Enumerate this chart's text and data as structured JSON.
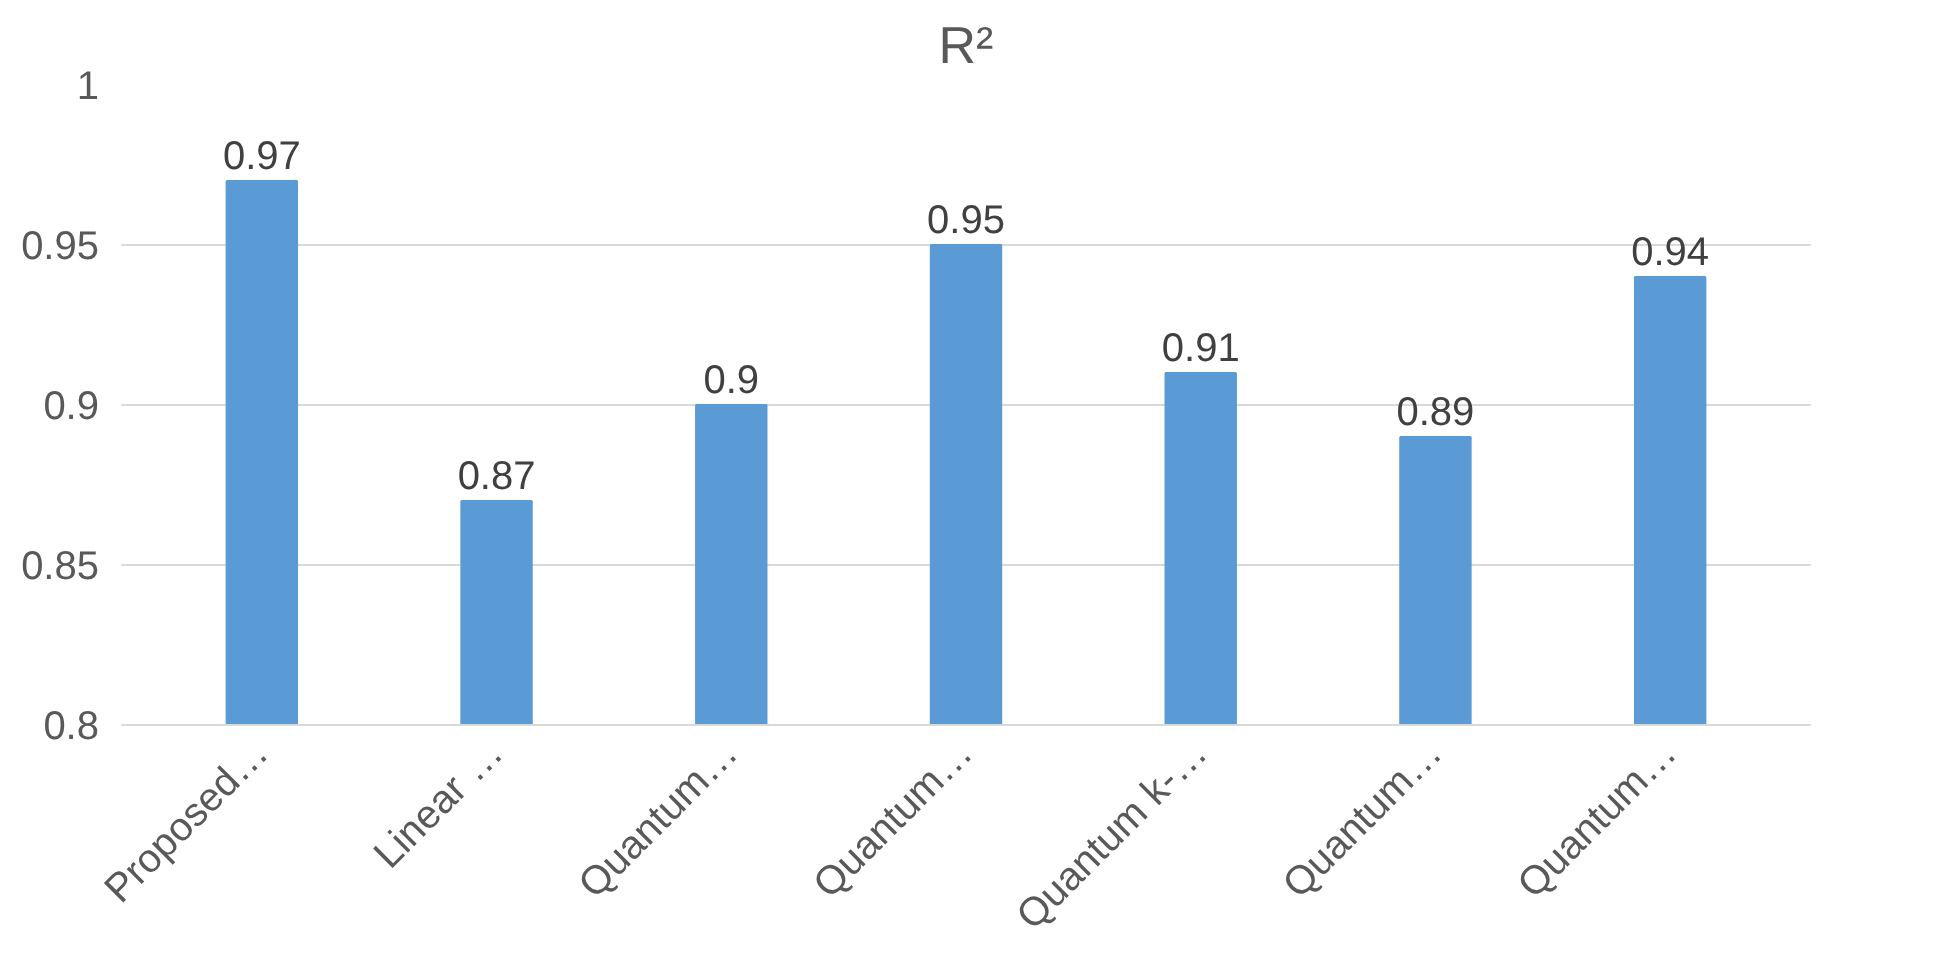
{
  "chart_data": {
    "type": "bar",
    "title": "R²",
    "categories": [
      "Proposed…",
      "Linear …",
      "Quantum…",
      "Quantum…",
      "Quantum k-…",
      "Quantum…",
      "Quantum…"
    ],
    "values": [
      0.97,
      0.87,
      0.9,
      0.95,
      0.91,
      0.89,
      0.94
    ],
    "color": "#5b9bd5",
    "ylim": [
      0.8,
      1
    ],
    "yticks": [
      0.8,
      0.85,
      0.9,
      0.95,
      1
    ],
    "grid": "y",
    "data_labels": true
  }
}
